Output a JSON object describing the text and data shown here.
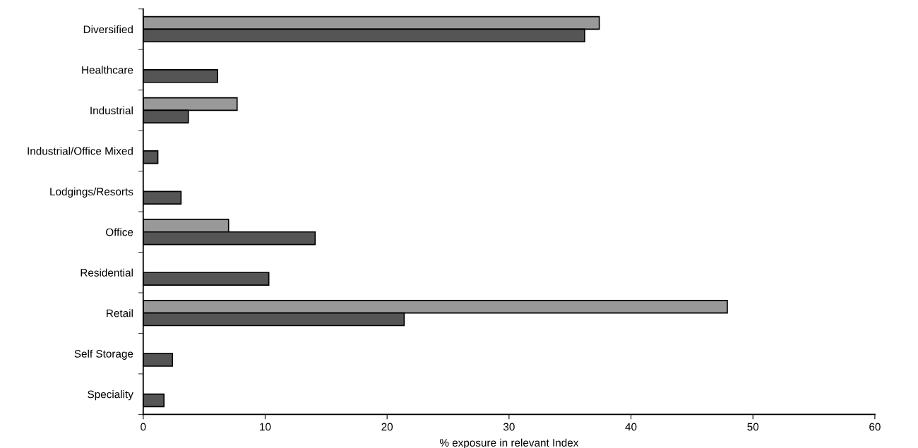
{
  "chart_data": {
    "type": "bar",
    "orientation": "horizontal",
    "xlabel": "% exposure in relevant Index",
    "categories": [
      "Diversified",
      "Healthcare",
      "Industrial",
      "Industrial/Office Mixed",
      "Lodgings/Resorts",
      "Office",
      "Residential",
      "Retail",
      "Self Storage",
      "Speciality"
    ],
    "series": [
      {
        "color": "#999999",
        "values": [
          37.4,
          null,
          7.7,
          null,
          null,
          7.0,
          null,
          47.9,
          null,
          null
        ]
      },
      {
        "color": "#555555",
        "values": [
          36.2,
          6.1,
          3.7,
          1.2,
          3.1,
          14.1,
          10.3,
          21.4,
          2.4,
          1.7
        ]
      }
    ],
    "xlim": [
      0,
      60
    ],
    "xticks": [
      0,
      10,
      20,
      30,
      40,
      50,
      60
    ],
    "grid": false,
    "legend": false
  }
}
